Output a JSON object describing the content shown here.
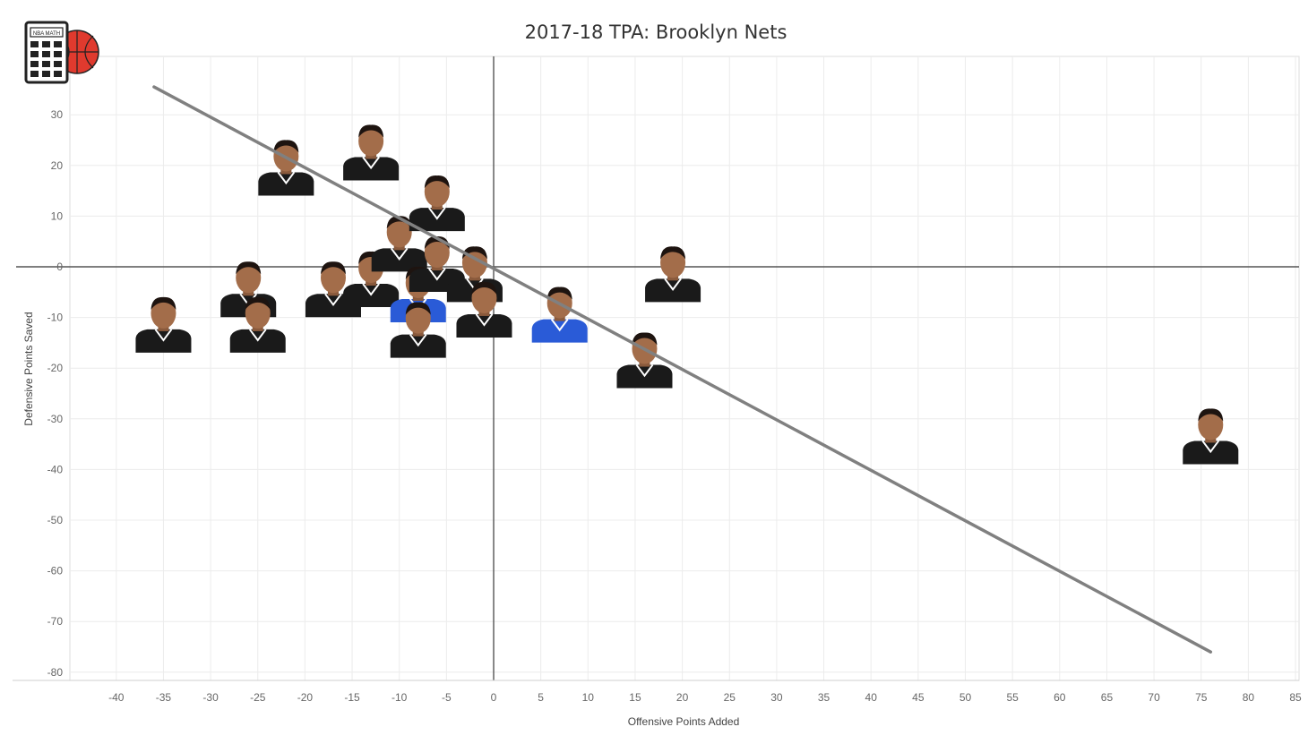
{
  "chart_data": {
    "type": "scatter",
    "title": "2017-18 TPA: Brooklyn Nets",
    "xlabel": "Offensive Points Added",
    "ylabel": "Defensive Points Saved",
    "xlim": [
      -45,
      85
    ],
    "ylim": [
      -82,
      41
    ],
    "xticks": [
      -40,
      -35,
      -30,
      -25,
      -20,
      -15,
      -10,
      -5,
      0,
      5,
      10,
      15,
      20,
      25,
      30,
      35,
      40,
      45,
      50,
      55,
      60,
      65,
      70,
      75,
      80,
      85
    ],
    "yticks": [
      30,
      20,
      10,
      0,
      -10,
      -20,
      -30,
      -40,
      -50,
      -60,
      -70,
      -80
    ],
    "grid": true,
    "points": [
      {
        "x": -35,
        "y": -12,
        "jersey": "#1a1a1a"
      },
      {
        "x": -26,
        "y": -5,
        "jersey": "#1a1a1a"
      },
      {
        "x": -25,
        "y": -12,
        "jersey": "#1a1a1a"
      },
      {
        "x": -22,
        "y": 19,
        "jersey": "#1a1a1a"
      },
      {
        "x": -17,
        "y": -5,
        "jersey": "#1a1a1a"
      },
      {
        "x": -13,
        "y": 22,
        "jersey": "#1a1a1a"
      },
      {
        "x": -13,
        "y": -3,
        "jersey": "#1a1a1a"
      },
      {
        "x": -10,
        "y": 4,
        "jersey": "#1a1a1a"
      },
      {
        "x": -8,
        "y": -6,
        "jersey": "#2a5bd7"
      },
      {
        "x": -8,
        "y": -13,
        "jersey": "#1a1a1a"
      },
      {
        "x": -6,
        "y": 12,
        "jersey": "#1a1a1a"
      },
      {
        "x": -6,
        "y": 0,
        "jersey": "#1a1a1a"
      },
      {
        "x": -2,
        "y": -2,
        "jersey": "#1a1a1a"
      },
      {
        "x": -1,
        "y": -9,
        "jersey": "#1a1a1a"
      },
      {
        "x": 7,
        "y": -10,
        "jersey": "#2a5bd7"
      },
      {
        "x": 16,
        "y": -19,
        "jersey": "#1a1a1a"
      },
      {
        "x": 19,
        "y": -2,
        "jersey": "#1a1a1a"
      },
      {
        "x": 76,
        "y": -34,
        "jersey": "#1a1a1a"
      }
    ],
    "trendline": {
      "x": [
        -36,
        76
      ],
      "y": [
        35.5,
        -76
      ],
      "color": "#808080"
    },
    "colors": {
      "axis_zero": "#555555",
      "grid": "#ececec",
      "background": "#ffffff"
    }
  },
  "logo": {
    "label": "NBA MATH",
    "icon": "calculator-basketball-icon",
    "ball_color": "#e03a2e"
  }
}
